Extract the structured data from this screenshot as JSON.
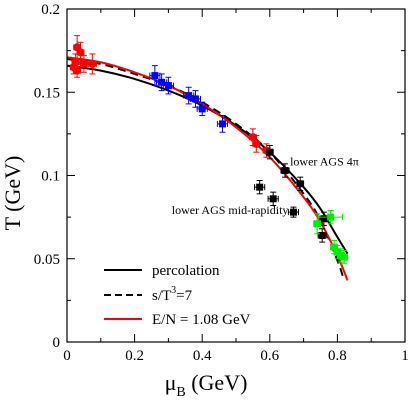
{
  "chart_data": {
    "type": "scatter",
    "xlabel_main": "μ",
    "xlabel_sub": "B",
    "xlabel_unit": " (GeV)",
    "ylabel": "T (GeV)",
    "xlim": [
      0,
      1
    ],
    "ylim": [
      0,
      0.2
    ],
    "x_ticks": [
      0,
      0.2,
      0.4,
      0.6,
      0.8,
      1
    ],
    "x_tick_labels": [
      "0",
      "0.2",
      "0.4",
      "0.6",
      "0.8",
      "1"
    ],
    "y_ticks": [
      0,
      0.05,
      0.1,
      0.15,
      0.2
    ],
    "y_tick_labels": [
      "0",
      "0.05",
      "0.1",
      "0.15",
      "0.2"
    ],
    "grid": false,
    "legend_position": "bottom-left",
    "curves": [
      {
        "name": "percolation",
        "color": "#000000",
        "dash": "solid",
        "x": [
          0,
          0.1,
          0.2,
          0.3,
          0.4,
          0.5,
          0.6,
          0.7,
          0.75,
          0.8,
          0.83
        ],
        "y": [
          0.166,
          0.163,
          0.158,
          0.151,
          0.142,
          0.13,
          0.114,
          0.093,
          0.08,
          0.063,
          0.053
        ]
      },
      {
        "name_main": "s/T",
        "name_sup": "3",
        "name_tail": "=7",
        "color": "#000000",
        "dash": "dashed",
        "x": [
          0,
          0.1,
          0.2,
          0.3,
          0.4,
          0.5,
          0.6,
          0.7,
          0.75,
          0.8,
          0.82
        ],
        "y": [
          0.17,
          0.167,
          0.161,
          0.154,
          0.144,
          0.131,
          0.114,
          0.089,
          0.073,
          0.049,
          0.037
        ]
      },
      {
        "name": "E/N = 1.08 GeV",
        "color": "#ff0000",
        "dash": "solid",
        "x": [
          0,
          0.1,
          0.2,
          0.3,
          0.4,
          0.5,
          0.6,
          0.7,
          0.75,
          0.8,
          0.83
        ],
        "y": [
          0.171,
          0.168,
          0.162,
          0.154,
          0.143,
          0.129,
          0.111,
          0.087,
          0.072,
          0.052,
          0.037
        ]
      }
    ],
    "points": [
      {
        "group": "red",
        "color": "#ff0000",
        "x": 0.02,
        "y": 0.165,
        "xerr": 0.01,
        "yerr": 0.004
      },
      {
        "group": "red",
        "color": "#ff0000",
        "x": 0.025,
        "y": 0.168,
        "xerr": 0.01,
        "yerr": 0.005
      },
      {
        "group": "red",
        "color": "#ff0000",
        "x": 0.03,
        "y": 0.177,
        "xerr": 0.01,
        "yerr": 0.007
      },
      {
        "group": "red",
        "color": "#ff0000",
        "x": 0.04,
        "y": 0.174,
        "xerr": 0.01,
        "yerr": 0.006
      },
      {
        "group": "red",
        "color": "#ff0000",
        "x": 0.03,
        "y": 0.163,
        "xerr": 0.01,
        "yerr": 0.004
      },
      {
        "group": "red",
        "color": "#ff0000",
        "x": 0.05,
        "y": 0.167,
        "xerr": 0.01,
        "yerr": 0.005
      },
      {
        "group": "red",
        "color": "#ff0000",
        "x": 0.075,
        "y": 0.167,
        "xerr": 0.012,
        "yerr": 0.006
      },
      {
        "group": "red",
        "color": "#ff0000",
        "x": 0.55,
        "y": 0.123,
        "xerr": 0.01,
        "yerr": 0.005
      },
      {
        "group": "red",
        "color": "#ff0000",
        "x": 0.56,
        "y": 0.119,
        "xerr": 0.01,
        "yerr": 0.005
      },
      {
        "group": "red",
        "color": "#ff0000",
        "x": 0.59,
        "y": 0.115,
        "xerr": 0.01,
        "yerr": 0.004
      },
      {
        "group": "blue",
        "color": "#0000ff",
        "x": 0.26,
        "y": 0.16,
        "xerr": 0.015,
        "yerr": 0.006
      },
      {
        "group": "blue",
        "color": "#0000ff",
        "x": 0.28,
        "y": 0.156,
        "xerr": 0.015,
        "yerr": 0.005
      },
      {
        "group": "blue",
        "color": "#0000ff",
        "x": 0.3,
        "y": 0.154,
        "xerr": 0.015,
        "yerr": 0.005
      },
      {
        "group": "blue",
        "color": "#0000ff",
        "x": 0.36,
        "y": 0.148,
        "xerr": 0.015,
        "yerr": 0.005
      },
      {
        "group": "blue",
        "color": "#0000ff",
        "x": 0.38,
        "y": 0.146,
        "xerr": 0.015,
        "yerr": 0.005
      },
      {
        "group": "blue",
        "color": "#0000ff",
        "x": 0.4,
        "y": 0.14,
        "xerr": 0.015,
        "yerr": 0.004
      },
      {
        "group": "blue",
        "color": "#0000ff",
        "x": 0.46,
        "y": 0.131,
        "xerr": 0.015,
        "yerr": 0.005
      },
      {
        "group": "black",
        "color": "#000000",
        "x": 0.57,
        "y": 0.093,
        "xerr": 0.015,
        "yerr": 0.004
      },
      {
        "group": "black",
        "color": "#000000",
        "x": 0.61,
        "y": 0.086,
        "xerr": 0.015,
        "yerr": 0.004
      },
      {
        "group": "black",
        "color": "#000000",
        "x": 0.6,
        "y": 0.114,
        "xerr": 0.01,
        "yerr": 0.004
      },
      {
        "group": "black",
        "color": "#000000",
        "x": 0.645,
        "y": 0.103,
        "xerr": 0.012,
        "yerr": 0.004
      },
      {
        "group": "black",
        "color": "#000000",
        "x": 0.67,
        "y": 0.078,
        "xerr": 0.015,
        "yerr": 0.003
      },
      {
        "group": "black",
        "color": "#000000",
        "x": 0.69,
        "y": 0.095,
        "xerr": 0.01,
        "yerr": 0.004
      },
      {
        "group": "black",
        "color": "#000000",
        "x": 0.755,
        "y": 0.064,
        "xerr": 0.012,
        "yerr": 0.004
      },
      {
        "group": "black",
        "color": "#000000",
        "x": 0.76,
        "y": 0.074,
        "xerr": 0.012,
        "yerr": 0.004
      },
      {
        "group": "green",
        "color": "#00ee00",
        "x": 0.74,
        "y": 0.071,
        "xerr": 0.01,
        "yerr": 0.006
      },
      {
        "group": "green",
        "color": "#00ee00",
        "x": 0.78,
        "y": 0.075,
        "xerr": 0.035,
        "yerr": 0.004
      },
      {
        "group": "green",
        "color": "#00ee00",
        "x": 0.79,
        "y": 0.057,
        "xerr": 0.01,
        "yerr": 0.004
      },
      {
        "group": "green",
        "color": "#00ee00",
        "x": 0.8,
        "y": 0.054,
        "xerr": 0.01,
        "yerr": 0.004
      },
      {
        "group": "green",
        "color": "#00ee00",
        "x": 0.81,
        "y": 0.052,
        "xerr": 0.01,
        "yerr": 0.004
      },
      {
        "group": "green",
        "color": "#00ee00",
        "x": 0.82,
        "y": 0.051,
        "xerr": 0.01,
        "yerr": 0.004
      }
    ],
    "annotations": [
      {
        "text": "lower AGS 4π",
        "x": 0.66,
        "y": 0.106
      },
      {
        "text": "lower AGS mid-rapidity",
        "x": 0.31,
        "y": 0.077
      }
    ]
  }
}
